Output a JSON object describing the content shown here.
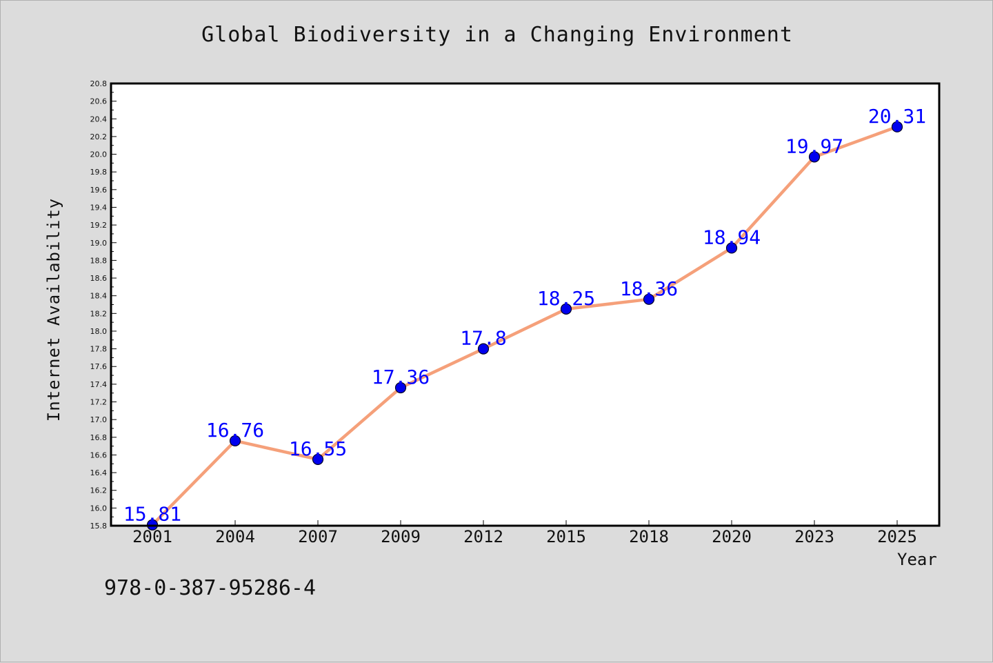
{
  "chart_data": {
    "type": "line",
    "title": "Global Biodiversity in a Changing Environment",
    "xlabel": "Year",
    "ylabel": "Internet Availability",
    "categories": [
      "2001",
      "2004",
      "2007",
      "2009",
      "2012",
      "2015",
      "2018",
      "2020",
      "2023",
      "2025"
    ],
    "series": [
      {
        "values": [
          15.81,
          16.76,
          16.55,
          17.36,
          17.8,
          18.25,
          18.36,
          18.94,
          19.97,
          20.31
        ],
        "labels": [
          "15.81",
          "16.76",
          "16.55",
          "17.36",
          "17.8",
          "18.25",
          "18.36",
          "18.94",
          "19.97",
          "20.31"
        ],
        "line_color": "#f5a07a",
        "marker_color": "#0000ee"
      }
    ],
    "ylim": [
      15.8,
      20.8
    ],
    "yticks": [
      "15.8",
      "16.0",
      "16.2",
      "16.4",
      "16.6",
      "16.8",
      "17.0",
      "17.2",
      "17.4",
      "17.6",
      "17.8",
      "18.0",
      "18.2",
      "18.4",
      "18.6",
      "18.8",
      "19.0",
      "19.2",
      "19.4",
      "19.6",
      "19.8",
      "20.0",
      "20.2",
      "20.4",
      "20.6",
      "20.8"
    ],
    "grid": false,
    "legend": "none",
    "label_color": "#0000ff"
  },
  "footer": {
    "isbn": "978-0-387-95286-4"
  }
}
